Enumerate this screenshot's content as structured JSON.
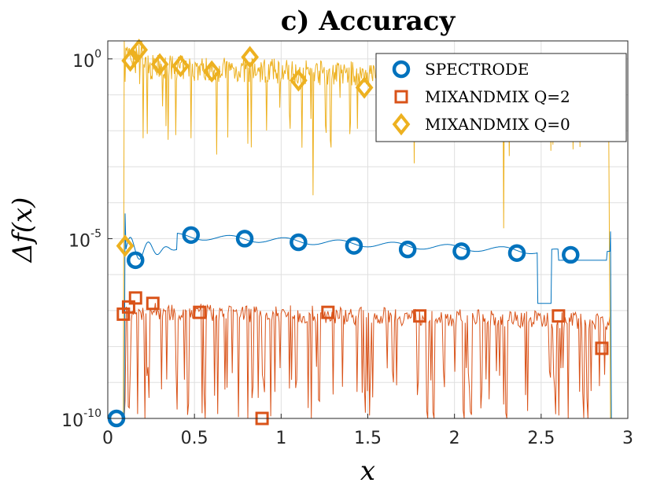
{
  "chart_data": {
    "type": "line",
    "title": "c) Accuracy",
    "xlabel": "x",
    "ylabel": "Δf(x)",
    "xlim": [
      0,
      3
    ],
    "ylim_log10": [
      -10,
      0.5
    ],
    "yscale": "log",
    "grid": true,
    "legend_position": "top-right",
    "x_ticks": [
      {
        "value": 0,
        "label": "0"
      },
      {
        "value": 0.5,
        "label": "0.5"
      },
      {
        "value": 1,
        "label": "1"
      },
      {
        "value": 1.5,
        "label": "1.5"
      },
      {
        "value": 2,
        "label": "2"
      },
      {
        "value": 2.5,
        "label": "2.5"
      },
      {
        "value": 3,
        "label": "3"
      }
    ],
    "y_ticks": [
      {
        "value_log10": -10,
        "base": "10",
        "exponent": "-10"
      },
      {
        "value_log10": -5,
        "base": "10",
        "exponent": "-5"
      },
      {
        "value_log10": 0,
        "base": "10",
        "exponent": "0"
      }
    ],
    "series": [
      {
        "name": "MIXANDMIX Q=0",
        "color": "#EDB120",
        "marker": "diamond",
        "x": [
          0.1,
          0.13,
          0.18,
          0.3,
          0.42,
          0.6,
          0.82,
          1.1,
          1.48
        ],
        "log10_values": [
          -5.2,
          -0.05,
          0.25,
          -0.15,
          -0.2,
          -0.35,
          0.05,
          -0.6,
          -0.8
        ]
      },
      {
        "name": "SPECTRODE",
        "color": "#0072BD",
        "marker": "circle",
        "x": [
          0.05,
          0.16,
          0.48,
          0.79,
          1.1,
          1.42,
          1.73,
          2.04,
          2.36,
          2.67
        ],
        "log10_values": [
          -10,
          -5.6,
          -4.9,
          -5.0,
          -5.1,
          -5.2,
          -5.3,
          -5.35,
          -5.4,
          -5.45
        ]
      },
      {
        "name": "MIXANDMIX Q=2",
        "color": "#D95319",
        "marker": "square",
        "x": [
          0.09,
          0.12,
          0.16,
          0.26,
          0.53,
          0.89,
          1.27,
          1.8,
          2.6,
          2.85
        ],
        "log10_values": [
          -7.1,
          -6.9,
          -6.65,
          -6.8,
          -7.05,
          -10,
          -7.05,
          -7.15,
          -7.15,
          -8.05
        ]
      }
    ]
  }
}
